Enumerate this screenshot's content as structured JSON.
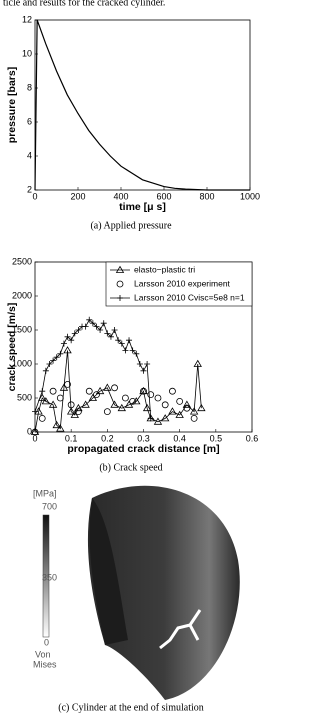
{
  "header_text": "ticle and results for the cracked cylinder.",
  "chart_data": [
    {
      "type": "line",
      "xlabel": "time [μ s]",
      "ylabel": "pressure [bars]",
      "caption": "(a)  Applied pressure",
      "xlim": [
        0,
        1000
      ],
      "ylim": [
        2,
        12
      ],
      "xticks": [
        0,
        200,
        400,
        600,
        800,
        1000
      ],
      "yticks": [
        2,
        4,
        6,
        8,
        10,
        12
      ],
      "series": [
        {
          "name": null,
          "color": "#000000",
          "marker": "none",
          "line": true,
          "x": [
            0,
            10,
            50,
            100,
            150,
            200,
            250,
            300,
            350,
            400,
            450,
            500,
            550,
            600,
            650,
            700,
            800,
            900,
            1000
          ],
          "values": [
            2,
            12,
            10.6,
            9.0,
            7.6,
            6.5,
            5.5,
            4.7,
            4.0,
            3.4,
            3.0,
            2.6,
            2.4,
            2.2,
            2.1,
            2.05,
            2,
            2,
            2
          ]
        }
      ]
    },
    {
      "type": "line",
      "xlabel": "propagated crack distance [m]",
      "ylabel": "crack speed [m/s]",
      "caption": "(b)  Crack speed",
      "xlim": [
        0,
        0.6
      ],
      "ylim": [
        0,
        2500
      ],
      "xticks": [
        0,
        0.1,
        0.2,
        0.3,
        0.4,
        0.5,
        0.6
      ],
      "yticks": [
        0,
        500,
        1000,
        1500,
        2000,
        2500
      ],
      "legend": "upper right",
      "series": [
        {
          "name": "elasto−plastic tri",
          "color": "#000000",
          "marker": "triangle",
          "line": true,
          "x": [
            0,
            0.01,
            0.02,
            0.03,
            0.05,
            0.06,
            0.07,
            0.08,
            0.09,
            0.1,
            0.11,
            0.12,
            0.14,
            0.16,
            0.18,
            0.2,
            0.22,
            0.24,
            0.26,
            0.28,
            0.3,
            0.31,
            0.32,
            0.34,
            0.36,
            0.38,
            0.4,
            0.42,
            0.44,
            0.45,
            0.46
          ],
          "values": [
            0,
            300,
            500,
            450,
            400,
            100,
            50,
            650,
            1200,
            300,
            250,
            350,
            400,
            500,
            600,
            650,
            400,
            350,
            400,
            450,
            600,
            350,
            200,
            150,
            200,
            300,
            250,
            400,
            300,
            1000,
            350
          ]
        },
        {
          "name": "Larsson 2010 experiment",
          "color": "#000000",
          "marker": "circle",
          "line": false,
          "x": [
            0,
            0.02,
            0.05,
            0.07,
            0.09,
            0.1,
            0.12,
            0.15,
            0.17,
            0.2,
            0.22,
            0.25,
            0.27,
            0.3,
            0.32,
            0.34,
            0.36,
            0.38,
            0.4,
            0.42,
            0.44
          ],
          "values": [
            0,
            200,
            600,
            500,
            700,
            400,
            300,
            600,
            550,
            300,
            650,
            500,
            450,
            600,
            550,
            500,
            400,
            600,
            450,
            350,
            200
          ]
        },
        {
          "name": "Larsson 2010 Cvisc=5e8 n=1",
          "color": "#000000",
          "marker": "plus",
          "line": true,
          "x": [
            0,
            0.02,
            0.03,
            0.04,
            0.05,
            0.06,
            0.07,
            0.08,
            0.09,
            0.1,
            0.11,
            0.12,
            0.13,
            0.14,
            0.15,
            0.16,
            0.17,
            0.18,
            0.19,
            0.2,
            0.21,
            0.22,
            0.23,
            0.24,
            0.25,
            0.26,
            0.27,
            0.28,
            0.29,
            0.3,
            0.31,
            0.32
          ],
          "values": [
            300,
            600,
            900,
            1000,
            1050,
            1100,
            1150,
            1300,
            1400,
            1350,
            1450,
            1500,
            1550,
            1550,
            1650,
            1600,
            1550,
            1500,
            1600,
            1450,
            1400,
            1500,
            1350,
            1300,
            1200,
            1350,
            1200,
            1150,
            1000,
            900,
            1000,
            200
          ]
        }
      ]
    }
  ],
  "figure_c": {
    "caption": "(c)  Cylinder at the end of simulation",
    "colorbar": {
      "unit": "[MPa]",
      "ticks": [
        700,
        350,
        0
      ],
      "label": [
        "Von",
        "Mises"
      ]
    }
  }
}
